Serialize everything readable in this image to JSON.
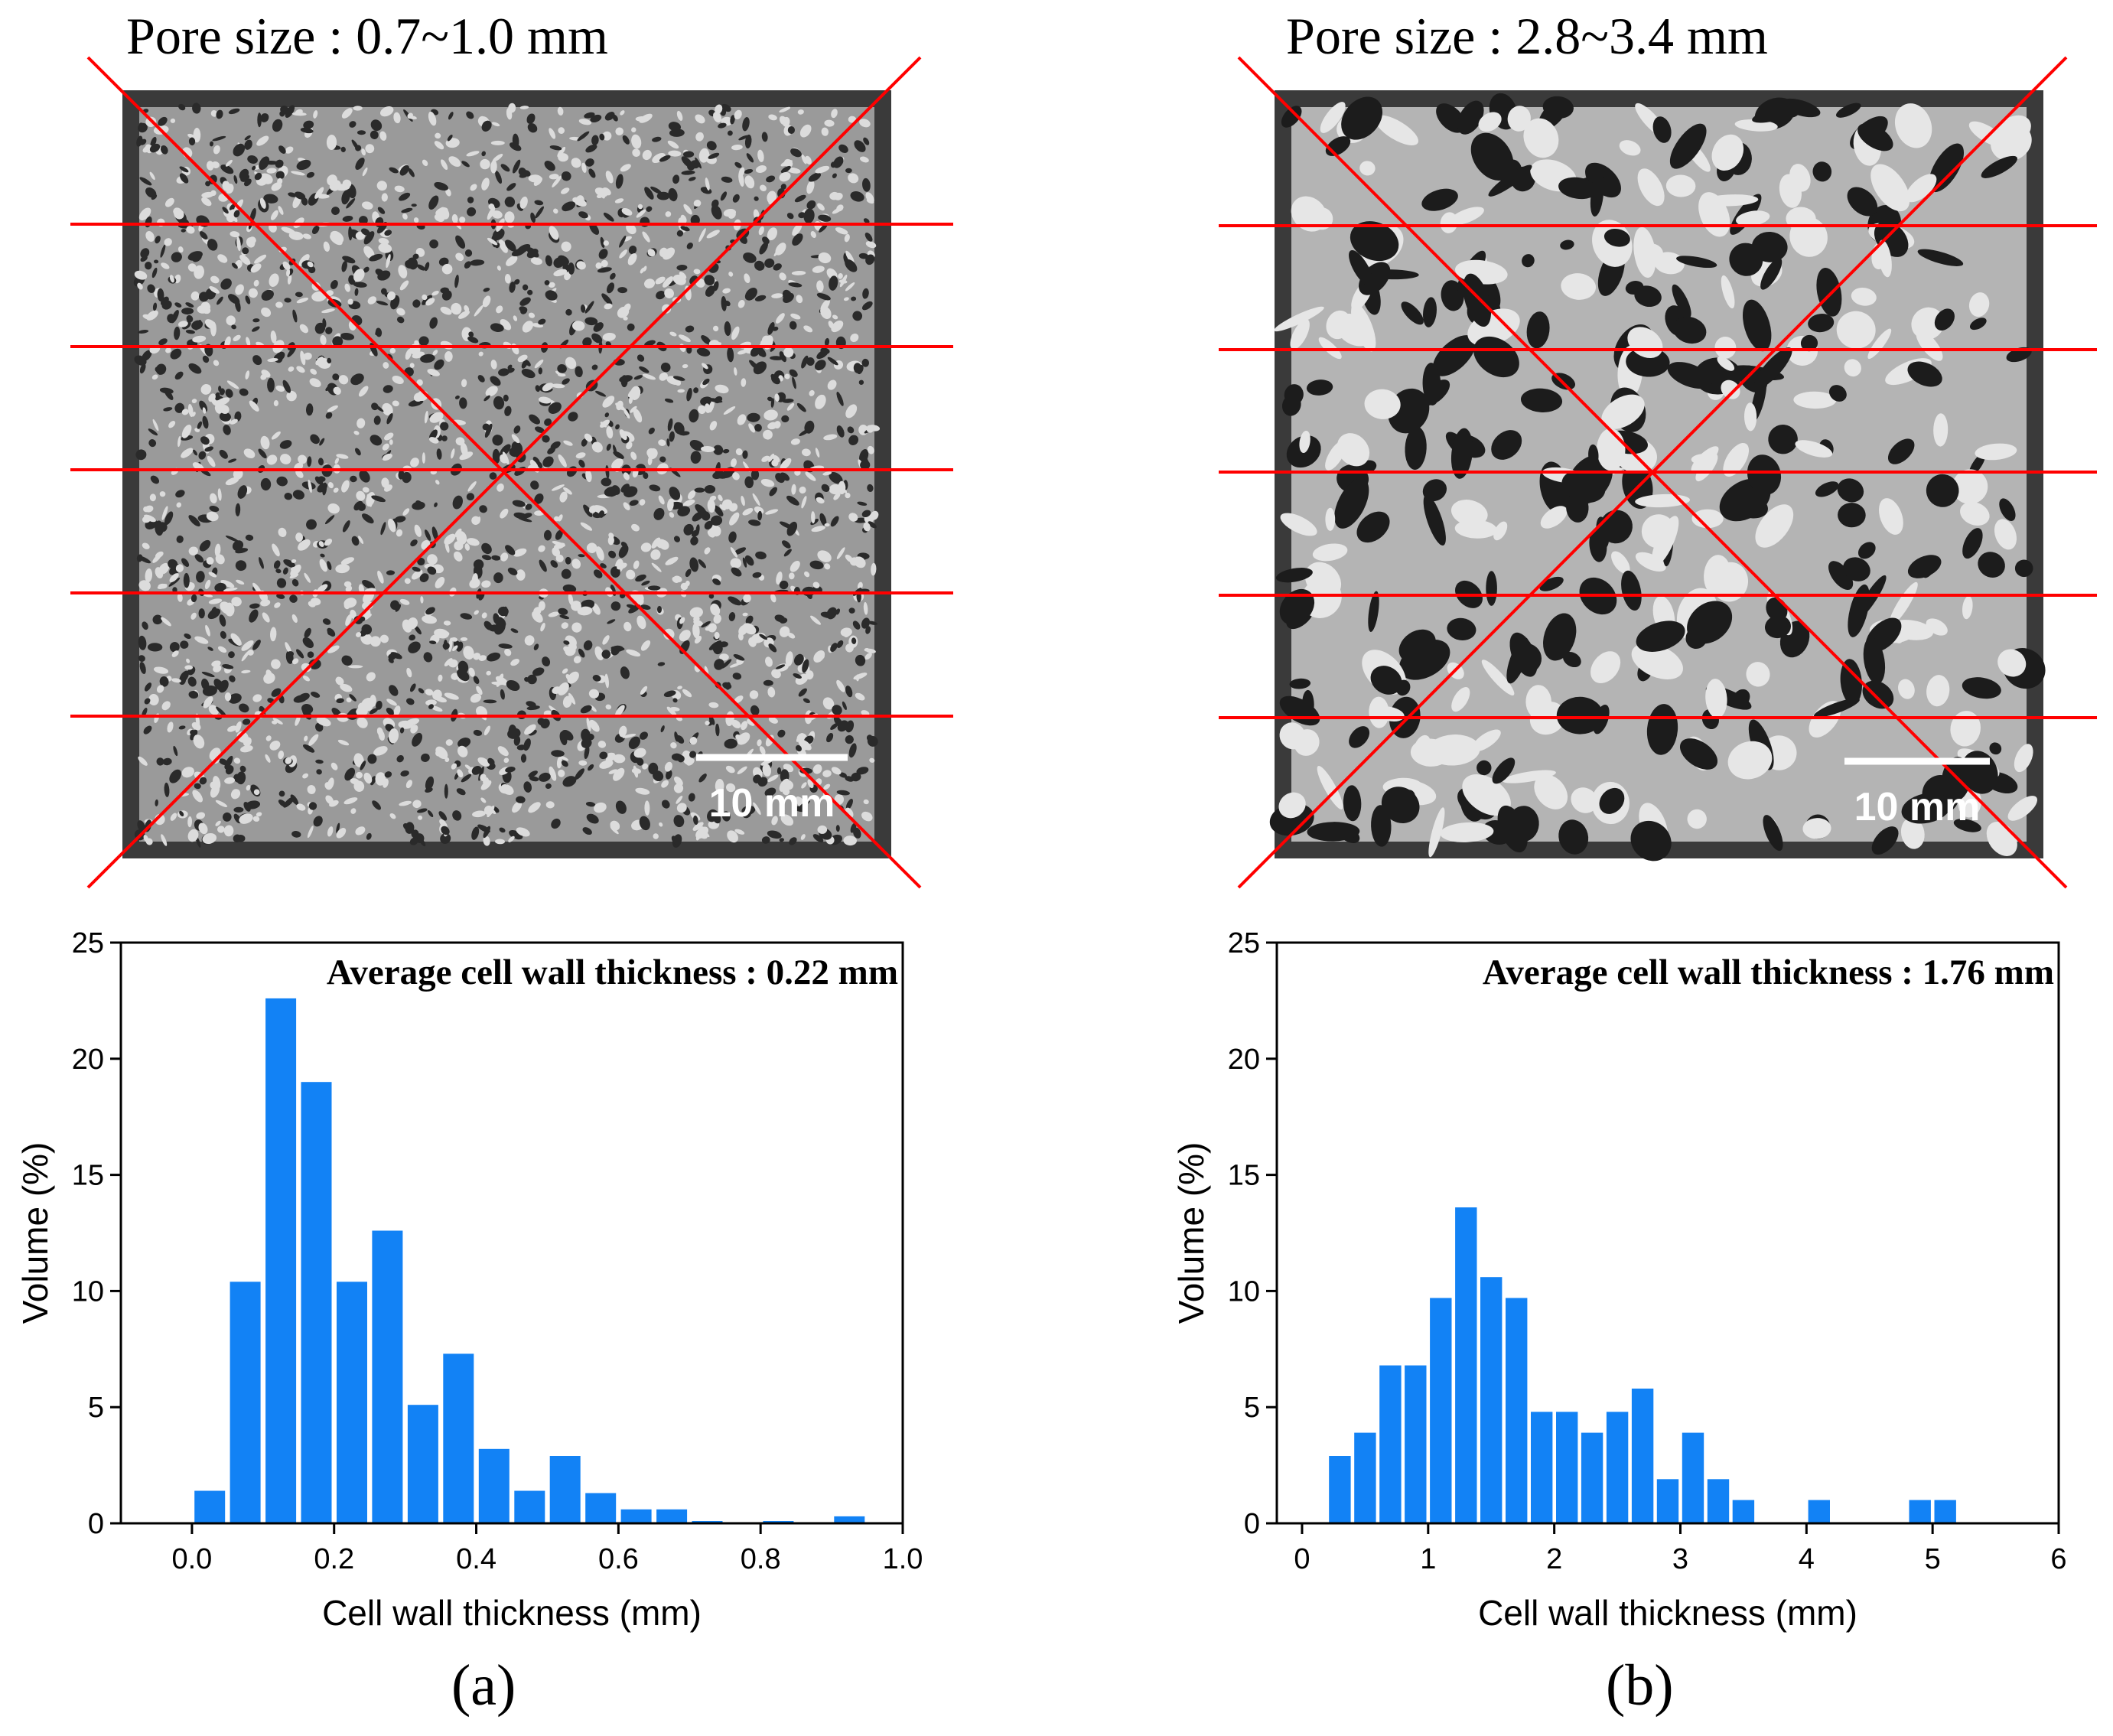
{
  "panels": [
    {
      "id": "a",
      "pore_size_label": "Pore size : 0.7~1.0 mm",
      "scale_bar_label": "10 mm",
      "panel_label": "(a)"
    },
    {
      "id": "b",
      "pore_size_label": "Pore size : 2.8~3.4 mm",
      "scale_bar_label": "10 mm",
      "panel_label": "(b)"
    }
  ],
  "colors": {
    "bar": "#1282f5",
    "overlay_line": "#ff0000",
    "image_dark": "#3a3a3a",
    "image_light": "#c8c8c8"
  },
  "chart_data": [
    {
      "type": "bar",
      "title": "Average cell wall thickness : 0.22 mm",
      "xlabel": "Cell wall thickness (mm)",
      "ylabel": "Volume (%)",
      "xlim": [
        -0.1,
        1.0
      ],
      "ylim": [
        0,
        25
      ],
      "xticks": [
        0.0,
        0.2,
        0.4,
        0.6,
        0.8,
        1.0
      ],
      "xtick_labels": [
        "0.0",
        "0.2",
        "0.4",
        "0.6",
        "0.8",
        "1.0"
      ],
      "yticks": [
        0,
        5,
        10,
        15,
        20,
        25
      ],
      "ytick_labels": [
        "0",
        "5",
        "10",
        "15",
        "20",
        "25"
      ],
      "bin_width": 0.05,
      "x": [
        0.025,
        0.075,
        0.125,
        0.175,
        0.225,
        0.275,
        0.325,
        0.375,
        0.425,
        0.475,
        0.525,
        0.575,
        0.625,
        0.675,
        0.725,
        0.775,
        0.825,
        0.875,
        0.925
      ],
      "values": [
        1.4,
        10.4,
        22.6,
        19.0,
        10.4,
        12.6,
        5.1,
        7.3,
        3.2,
        1.4,
        2.9,
        1.3,
        0.6,
        0.6,
        0.1,
        0.0,
        0.1,
        0.0,
        0.3
      ]
    },
    {
      "type": "bar",
      "title": "Average cell wall thickness : 1.76 mm",
      "xlabel": "Cell wall thickness (mm)",
      "ylabel": "Volume (%)",
      "xlim": [
        -0.2,
        6.0
      ],
      "ylim": [
        0,
        25
      ],
      "xticks": [
        0,
        1,
        2,
        3,
        4,
        5,
        6
      ],
      "xtick_labels": [
        "0",
        "1",
        "2",
        "3",
        "4",
        "5",
        "6"
      ],
      "yticks": [
        0,
        5,
        10,
        15,
        20,
        25
      ],
      "ytick_labels": [
        "0",
        "5",
        "10",
        "15",
        "20",
        "25"
      ],
      "bin_width": 0.2,
      "x": [
        0.3,
        0.5,
        0.7,
        0.9,
        1.1,
        1.3,
        1.5,
        1.7,
        1.9,
        2.1,
        2.3,
        2.5,
        2.7,
        2.9,
        3.1,
        3.3,
        3.5,
        4.1,
        4.9,
        5.1
      ],
      "values": [
        2.9,
        3.9,
        6.8,
        6.8,
        9.7,
        13.6,
        10.6,
        9.7,
        4.8,
        4.8,
        3.9,
        4.8,
        5.8,
        1.9,
        3.9,
        1.9,
        1.0,
        1.0,
        1.0,
        1.0
      ]
    }
  ]
}
